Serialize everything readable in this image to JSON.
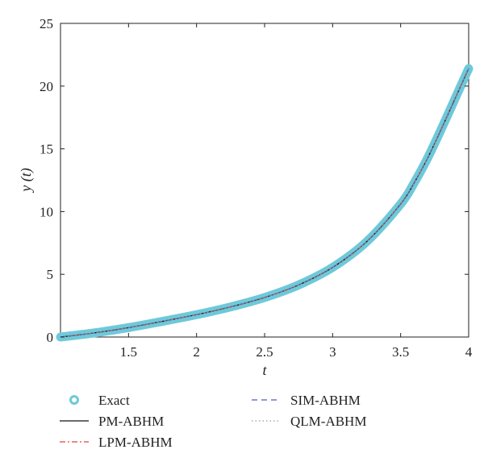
{
  "chart_data": {
    "type": "line",
    "xlabel": "t",
    "ylabel": "y (t)",
    "xlim": [
      1,
      4
    ],
    "ylim": [
      0,
      25
    ],
    "xticks": [
      1.5,
      2,
      2.5,
      3,
      3.5,
      4
    ],
    "yticks": [
      0,
      5,
      10,
      15,
      20,
      25
    ],
    "grid": false,
    "legend_position": "bottom",
    "colors": {
      "exact": "#6ec9d9",
      "pm": "#111111",
      "lpm": "#e8413c",
      "sim": "#4a5fb5",
      "qlm": "#9a9a9a"
    },
    "x": [
      1.0,
      1.25,
      1.5,
      1.75,
      2.0,
      2.25,
      2.5,
      2.75,
      3.0,
      3.25,
      3.5,
      3.6,
      3.7,
      3.8,
      3.9,
      4.0
    ],
    "series": [
      {
        "name": "Exact",
        "style": "circles",
        "values": [
          0.0,
          0.33,
          0.75,
          1.25,
          1.78,
          2.4,
          3.15,
          4.15,
          5.55,
          7.6,
          10.6,
          12.3,
          14.3,
          16.6,
          19.0,
          21.4
        ]
      },
      {
        "name": "PM-ABHM",
        "style": "solid",
        "values": [
          0.0,
          0.33,
          0.75,
          1.25,
          1.78,
          2.4,
          3.15,
          4.15,
          5.55,
          7.6,
          10.6,
          12.3,
          14.3,
          16.6,
          19.0,
          21.4
        ]
      },
      {
        "name": "LPM-ABHM",
        "style": "dashdot",
        "values": [
          0.0,
          0.33,
          0.75,
          1.25,
          1.78,
          2.4,
          3.15,
          4.15,
          5.55,
          7.6,
          10.6,
          12.3,
          14.3,
          16.6,
          19.0,
          21.4
        ]
      },
      {
        "name": "SIM-ABHM",
        "style": "dashed",
        "values": [
          0.0,
          0.33,
          0.75,
          1.25,
          1.78,
          2.4,
          3.15,
          4.15,
          5.55,
          7.6,
          10.6,
          12.3,
          14.3,
          16.6,
          19.0,
          21.4
        ]
      },
      {
        "name": "QLM-ABHM",
        "style": "dotted",
        "values": [
          0.0,
          0.33,
          0.75,
          1.25,
          1.78,
          2.4,
          3.15,
          4.15,
          5.55,
          7.6,
          10.6,
          12.3,
          14.3,
          16.6,
          19.0,
          21.4
        ]
      }
    ]
  }
}
